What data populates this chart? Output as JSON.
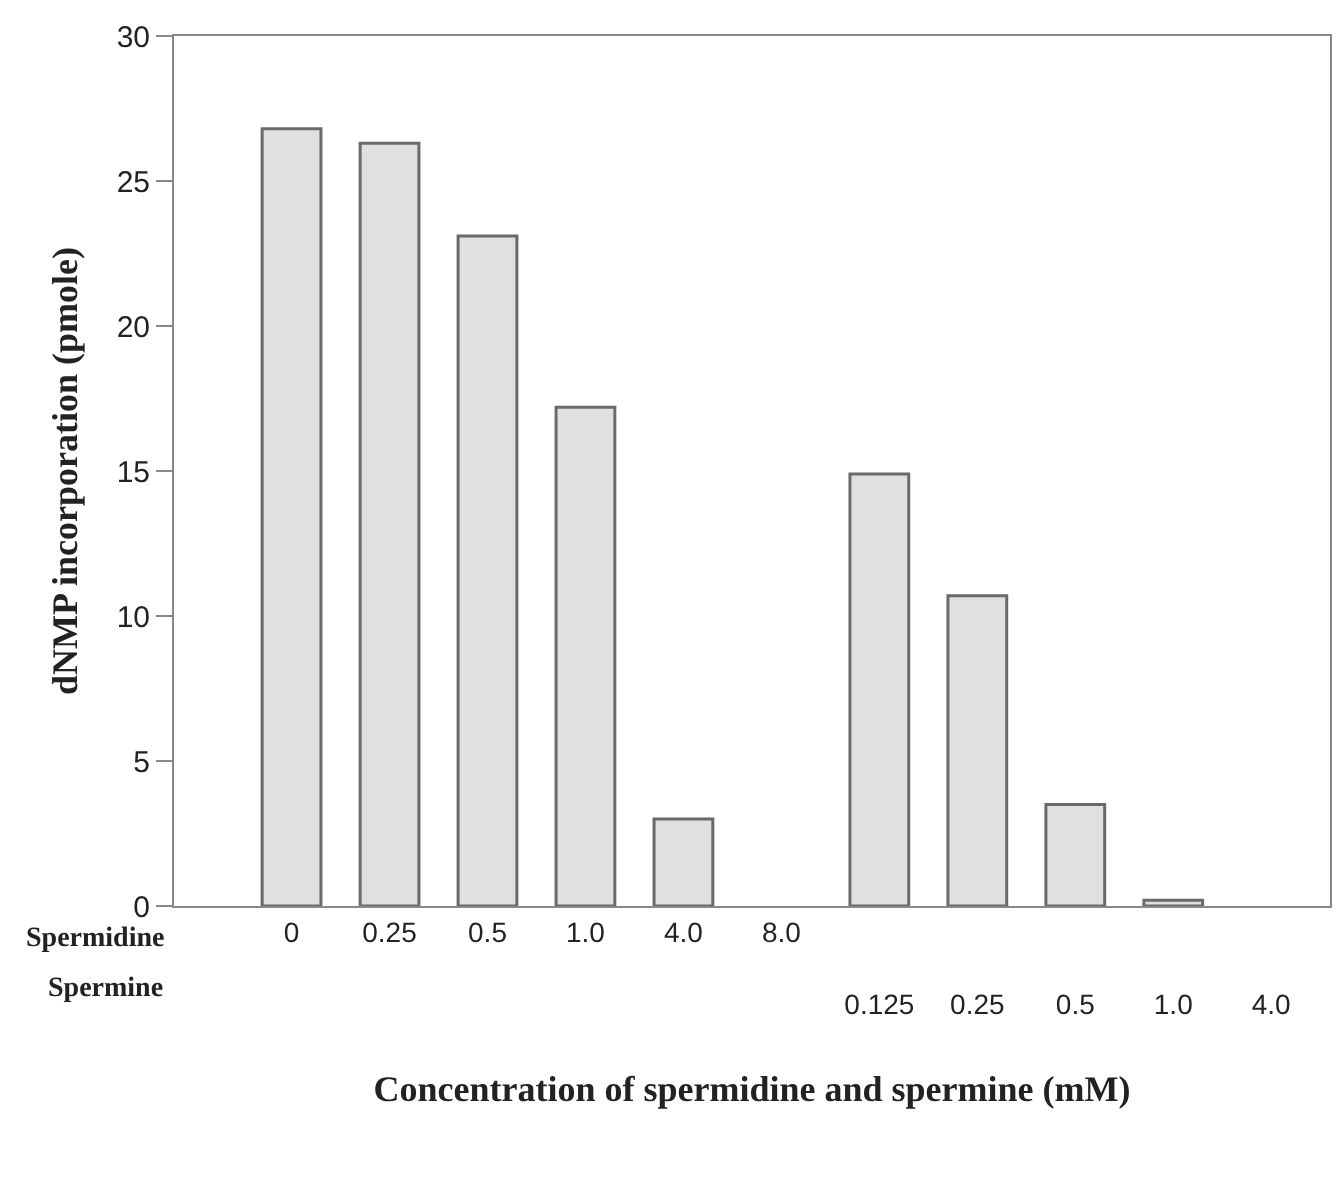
{
  "chart_data": {
    "type": "bar",
    "categories": [
      "0",
      "0.25",
      "0.5",
      "1.0",
      "4.0",
      "8.0",
      "0.125",
      "0.25",
      "0.5",
      "1.0",
      "4.0"
    ],
    "series": [
      {
        "color": "#e0e0e0",
        "values": [
          26.8,
          26.3,
          23.1,
          17.2,
          3.0,
          0,
          null,
          null,
          null,
          null,
          null
        ]
      },
      {
        "color": "#e0e0e0",
        "values": [
          null,
          null,
          null,
          null,
          null,
          null,
          14.9,
          10.7,
          3.5,
          0.2,
          0
        ]
      }
    ],
    "annotations": [
      "Spermidine",
      "Spermine"
    ],
    "xlabel": "Concentration of spermidine and spermine (mM)",
    "ylabel": "dNMP incorporation (pmole)",
    "ylim": [
      0,
      30
    ],
    "yticks": [
      0,
      5,
      10,
      15,
      20,
      25,
      30
    ]
  }
}
